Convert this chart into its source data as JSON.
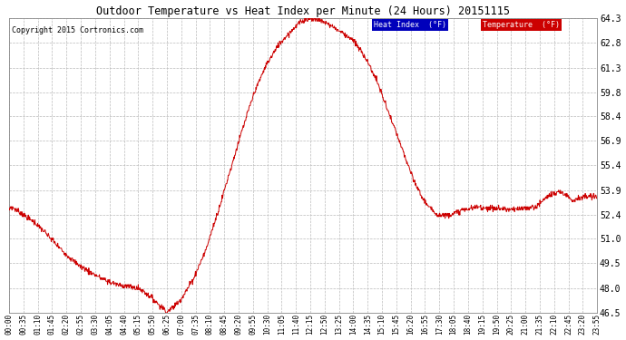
{
  "title": "Outdoor Temperature vs Heat Index per Minute (24 Hours) 20151115",
  "copyright": "Copyright 2015 Cortronics.com",
  "ylim": [
    46.5,
    64.3
  ],
  "yticks": [
    46.5,
    48.0,
    49.5,
    51.0,
    52.4,
    53.9,
    55.4,
    56.9,
    58.4,
    59.8,
    61.3,
    62.8,
    64.3
  ],
  "line_color": "#cc0000",
  "background_color": "#ffffff",
  "grid_color": "#bbbbbb",
  "legend_heat_index_bg": "#0000bb",
  "legend_temp_bg": "#cc0000",
  "legend_heat_index_text": "Heat Index  (°F)",
  "legend_temp_text": "Temperature  (°F)",
  "x_tick_labels": [
    "00:00",
    "00:35",
    "01:10",
    "01:45",
    "02:20",
    "02:55",
    "03:30",
    "04:05",
    "04:40",
    "05:15",
    "05:50",
    "06:25",
    "07:00",
    "07:35",
    "08:10",
    "08:45",
    "09:20",
    "09:55",
    "10:30",
    "11:05",
    "11:40",
    "12:15",
    "12:50",
    "13:25",
    "14:00",
    "14:35",
    "15:10",
    "15:45",
    "16:20",
    "16:55",
    "17:30",
    "18:05",
    "18:40",
    "19:15",
    "19:50",
    "20:25",
    "21:00",
    "21:35",
    "22:10",
    "22:45",
    "23:20",
    "23:55"
  ],
  "n_points": 1440,
  "control_x": [
    0,
    5,
    30,
    60,
    90,
    120,
    150,
    180,
    210,
    240,
    265,
    290,
    310,
    330,
    350,
    370,
    380,
    385,
    390,
    400,
    420,
    450,
    480,
    510,
    540,
    570,
    600,
    630,
    660,
    690,
    710,
    725,
    735,
    745,
    755,
    765,
    775,
    790,
    810,
    840,
    870,
    900,
    930,
    960,
    990,
    1010,
    1030,
    1050,
    1070,
    1090,
    1110,
    1130,
    1150,
    1170,
    1200,
    1230,
    1260,
    1290,
    1320,
    1350,
    1380,
    1410,
    1439
  ],
  "control_y": [
    52.7,
    52.9,
    52.5,
    52.0,
    51.3,
    50.5,
    49.8,
    49.2,
    48.8,
    48.4,
    48.2,
    48.1,
    48.0,
    47.8,
    47.4,
    46.9,
    46.7,
    46.5,
    46.6,
    46.8,
    47.3,
    48.5,
    50.2,
    52.5,
    55.0,
    57.5,
    59.8,
    61.5,
    62.7,
    63.5,
    64.0,
    64.2,
    64.3,
    64.25,
    64.2,
    64.1,
    64.0,
    63.8,
    63.5,
    63.0,
    62.0,
    60.5,
    58.5,
    56.5,
    54.5,
    53.5,
    52.8,
    52.4,
    52.4,
    52.5,
    52.7,
    52.8,
    52.9,
    52.8,
    52.8,
    52.7,
    52.8,
    52.9,
    53.6,
    53.8,
    53.3,
    53.5,
    53.5
  ]
}
